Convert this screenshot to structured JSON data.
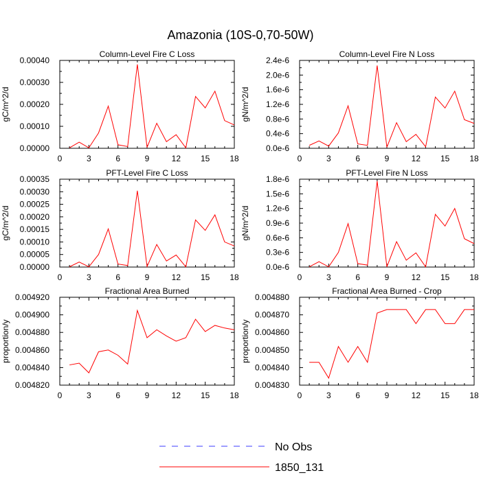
{
  "figure_title": "Amazonia (10S-0,70-50W)",
  "legend": [
    {
      "label": "No Obs",
      "color": "#3b3bff",
      "dash": true
    },
    {
      "label": "1850_131",
      "color": "#ff0000",
      "dash": false
    }
  ],
  "chart_data": [
    {
      "type": "line",
      "title": "Column-Level Fire C Loss",
      "ylabel": "gC/m^2/d",
      "xlim": [
        0,
        18
      ],
      "ylim": [
        0,
        0.0004
      ],
      "xticks": [
        0,
        3,
        6,
        9,
        12,
        15,
        18
      ],
      "yticks": [
        0,
        0.0001,
        0.0002,
        0.0003,
        0.0004
      ],
      "ytick_labels": [
        "0.00000",
        "0.00010",
        "0.00020",
        "0.00030",
        "0.00040"
      ],
      "x": [
        1,
        2,
        3,
        4,
        5,
        6,
        7,
        8,
        9,
        10,
        11,
        12,
        13,
        14,
        15,
        16,
        17,
        18
      ],
      "series": [
        {
          "name": "1850_131",
          "color": "#ff0000",
          "values": [
            2e-06,
            2.8e-05,
            2e-06,
            7e-05,
            0.000192,
            1.6e-05,
            8e-06,
            0.000382,
            4e-06,
            0.000114,
            3e-05,
            6.2e-05,
            2e-06,
            0.000236,
            0.000184,
            0.00026,
            0.000126,
            0.000106
          ]
        }
      ]
    },
    {
      "type": "line",
      "title": "Column-Level Fire N Loss",
      "ylabel": "gN/m^2/d",
      "xlim": [
        0,
        18
      ],
      "ylim": [
        0,
        2.4e-06
      ],
      "xticks": [
        0,
        3,
        6,
        9,
        12,
        15,
        18
      ],
      "yticks": [
        0,
        4e-07,
        8e-07,
        1.2e-06,
        1.6e-06,
        2e-06,
        2.4e-06
      ],
      "ytick_labels": [
        "0.0e-6",
        "0.4e-6",
        "0.8e-6",
        "1.2e-6",
        "1.6e-6",
        "2.0e-6",
        "2.4e-6"
      ],
      "x": [
        1,
        2,
        3,
        4,
        5,
        6,
        7,
        8,
        9,
        10,
        11,
        12,
        13,
        14,
        15,
        16,
        17,
        18
      ],
      "series": [
        {
          "name": "1850_131",
          "color": "#ff0000",
          "values": [
            8e-08,
            2e-07,
            6e-08,
            4.2e-07,
            1.16e-06,
            1.2e-07,
            8e-08,
            2.26e-06,
            3e-08,
            7e-07,
            1.8e-07,
            3.8e-07,
            4e-08,
            1.4e-06,
            1.1e-06,
            1.56e-06,
            7.8e-07,
            6.8e-07
          ]
        }
      ]
    },
    {
      "type": "line",
      "title": "PFT-Level Fire C Loss",
      "ylabel": "gC/m^2/d",
      "xlim": [
        0,
        18
      ],
      "ylim": [
        0,
        0.00035
      ],
      "xticks": [
        0,
        3,
        6,
        9,
        12,
        15,
        18
      ],
      "yticks": [
        0,
        5e-05,
        0.0001,
        0.00015,
        0.0002,
        0.00025,
        0.0003,
        0.00035
      ],
      "ytick_labels": [
        "0.00000",
        "0.00005",
        "0.00010",
        "0.00015",
        "0.00020",
        "0.00025",
        "0.00030",
        "0.00035"
      ],
      "x": [
        1,
        2,
        3,
        4,
        5,
        6,
        7,
        8,
        9,
        10,
        11,
        12,
        13,
        14,
        15,
        16,
        17,
        18
      ],
      "series": [
        {
          "name": "1850_131",
          "color": "#ff0000",
          "values": [
            1e-06,
            2e-05,
            1e-06,
            5e-05,
            0.000152,
            1.2e-05,
            6e-06,
            0.000304,
            2e-06,
            9e-05,
            2.4e-05,
            4.8e-05,
            1e-06,
            0.000188,
            0.000146,
            0.000208,
            0.0001,
            8.4e-05
          ]
        }
      ]
    },
    {
      "type": "line",
      "title": "PFT-Level Fire N Loss",
      "ylabel": "gN/m^2/d",
      "xlim": [
        0,
        18
      ],
      "ylim": [
        0,
        1.8e-06
      ],
      "xticks": [
        0,
        3,
        6,
        9,
        12,
        15,
        18
      ],
      "yticks": [
        0,
        3e-07,
        6e-07,
        9e-07,
        1.2e-06,
        1.5e-06,
        1.8e-06
      ],
      "ytick_labels": [
        "0.0e-6",
        "0.3e-6",
        "0.6e-6",
        "0.9e-6",
        "1.2e-6",
        "1.5e-6",
        "1.8e-6"
      ],
      "x": [
        1,
        2,
        3,
        4,
        5,
        6,
        7,
        8,
        9,
        10,
        11,
        12,
        13,
        14,
        15,
        16,
        17,
        18
      ],
      "series": [
        {
          "name": "1850_131",
          "color": "#ff0000",
          "values": [
            5e-09,
            1.1e-07,
            5e-09,
            3e-07,
            8.9e-07,
            7e-08,
            4e-08,
            1.76e-06,
            5e-09,
            5.2e-07,
            1.4e-07,
            2.9e-07,
            5e-09,
            1.08e-06,
            8.4e-07,
            1.2e-06,
            5.8e-07,
            4.8e-07
          ]
        }
      ]
    },
    {
      "type": "line",
      "title": "Fractional Area Burned",
      "ylabel": "proportion/y",
      "xlim": [
        0,
        18
      ],
      "ylim": [
        0.00482,
        0.00492
      ],
      "xticks": [
        0,
        3,
        6,
        9,
        12,
        15,
        18
      ],
      "yticks": [
        0.00482,
        0.00484,
        0.00486,
        0.00488,
        0.0049,
        0.00492
      ],
      "ytick_labels": [
        "0.004820",
        "0.004840",
        "0.004860",
        "0.004880",
        "0.004900",
        "0.004920"
      ],
      "x": [
        1,
        2,
        3,
        4,
        5,
        6,
        7,
        8,
        9,
        10,
        11,
        12,
        13,
        14,
        15,
        16,
        17,
        18
      ],
      "series": [
        {
          "name": "1850_131",
          "color": "#ff0000",
          "values": [
            0.004843,
            0.004845,
            0.004834,
            0.004858,
            0.00486,
            0.004854,
            0.004844,
            0.004905,
            0.004874,
            0.004883,
            0.004876,
            0.00487,
            0.004874,
            0.004895,
            0.004881,
            0.004888,
            0.004885,
            0.004883
          ]
        }
      ]
    },
    {
      "type": "line",
      "title": "Fractional Area Burned - Crop",
      "ylabel": "proportion/y",
      "xlim": [
        0,
        18
      ],
      "ylim": [
        0.00483,
        0.00488
      ],
      "xticks": [
        0,
        3,
        6,
        9,
        12,
        15,
        18
      ],
      "yticks": [
        0.00483,
        0.00484,
        0.00485,
        0.00486,
        0.00487,
        0.00488
      ],
      "ytick_labels": [
        "0.004830",
        "0.004840",
        "0.004850",
        "0.004860",
        "0.004870",
        "0.004880"
      ],
      "x": [
        1,
        2,
        3,
        4,
        5,
        6,
        7,
        8,
        9,
        10,
        11,
        12,
        13,
        14,
        15,
        16,
        17,
        18
      ],
      "series": [
        {
          "name": "1850_131",
          "color": "#ff0000",
          "values": [
            0.004843,
            0.004843,
            0.004834,
            0.004852,
            0.004843,
            0.004852,
            0.004843,
            0.004871,
            0.004873,
            0.004873,
            0.004873,
            0.004865,
            0.004873,
            0.004873,
            0.004865,
            0.004865,
            0.004873,
            0.004873
          ]
        }
      ]
    }
  ]
}
